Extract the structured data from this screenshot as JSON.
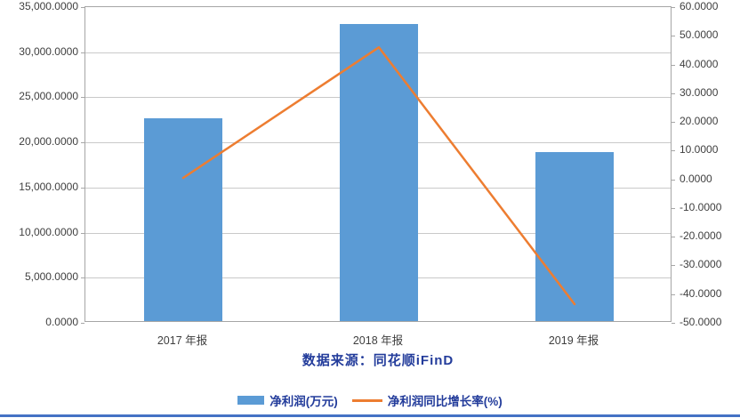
{
  "chart_data": {
    "type": "bar",
    "subtype": "combo-bar-line",
    "categories": [
      "2017 年报",
      "2018 年报",
      "2019 年报"
    ],
    "series": [
      {
        "name": "净利润(万元)",
        "type": "bar",
        "axis": "left",
        "color": "#5B9BD5",
        "values": [
          22500,
          32900,
          18700
        ]
      },
      {
        "name": "净利润同比增长率(%)",
        "type": "line",
        "axis": "right",
        "color": "#ED7D31",
        "values": [
          0.5,
          46.0,
          -43.5
        ]
      }
    ],
    "left_axis": {
      "min": 0,
      "max": 35000,
      "step": 5000,
      "labels": [
        "35,000.0000",
        "30,000.0000",
        "25,000.0000",
        "20,000.0000",
        "15,000.0000",
        "10,000.0000",
        "5,000.0000",
        "0.0000"
      ]
    },
    "right_axis": {
      "min": -50,
      "max": 60,
      "step": 10,
      "labels": [
        "60.0000",
        "50.0000",
        "40.0000",
        "30.0000",
        "20.0000",
        "10.0000",
        "0.0000",
        "-10.0000",
        "-20.0000",
        "-30.0000",
        "-40.0000",
        "-50.0000"
      ]
    },
    "grid": true,
    "legend_position": "bottom",
    "source_caption": "数据来源：同花顺iFinD"
  },
  "colors": {
    "bar": "#5B9BD5",
    "line": "#ED7D31",
    "caption_text": "#233C9B",
    "axis_text": "#3F3F3F",
    "gridline": "#C9C9C9",
    "plot_border": "#A6A6A6",
    "bottom_rule": "#4472C4"
  }
}
